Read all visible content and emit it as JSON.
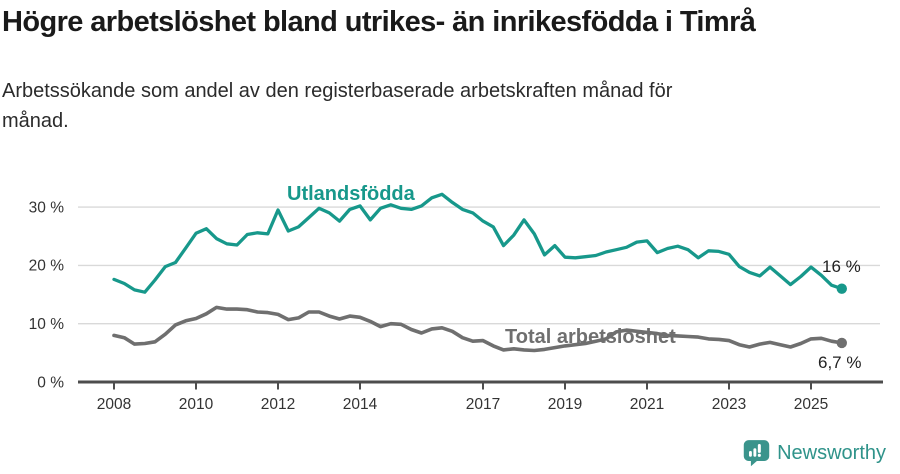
{
  "header": {
    "title": "Högre arbetslöshet bland utrikes- än inrikesfödda i Timrå",
    "subtitle_line1": "Arbetssökande som andel av den registerbaserade arbetskraften månad för",
    "subtitle_line2": "månad."
  },
  "footer": {
    "brand": "Newsworthy",
    "logo_icon": "newsworthy-speech-bubble-bar-chart-icon"
  },
  "colors": {
    "foreign_born_line": "#17988b",
    "total_line": "#6f6f6f",
    "grid": "#d9d9d9",
    "axis": "#4d4d4d",
    "axis_text": "#333333",
    "end_label_text": "#222222",
    "title_text": "#1a1a1a",
    "brand": "#2f938a"
  },
  "chart_data": {
    "type": "line",
    "title": "Högre arbetslöshet bland utrikes- än inrikesfödda i Timrå",
    "subtitle": "Arbetssökande som andel av den registerbaserade arbetskraften månad för månad.",
    "xlabel": "",
    "ylabel": "",
    "unit": "%",
    "grid": "horizontal",
    "legend": "inline-labels",
    "xlim": [
      2008,
      2026
    ],
    "ylim": [
      0,
      34
    ],
    "x_ticks": [
      {
        "value": 2008,
        "label": "2008"
      },
      {
        "value": 2010,
        "label": "2010"
      },
      {
        "value": 2012,
        "label": "2012"
      },
      {
        "value": 2014,
        "label": "2014"
      },
      {
        "value": 2017,
        "label": "2017"
      },
      {
        "value": 2019,
        "label": "2019"
      },
      {
        "value": 2021,
        "label": "2021"
      },
      {
        "value": 2023,
        "label": "2023"
      },
      {
        "value": 2025,
        "label": "2025"
      }
    ],
    "y_ticks": [
      {
        "value": 0,
        "label": "0 %"
      },
      {
        "value": 10,
        "label": "10 %"
      },
      {
        "value": 20,
        "label": "20 %"
      },
      {
        "value": 30,
        "label": "30 %"
      }
    ],
    "x": [
      2008,
      2008.25,
      2008.5,
      2008.75,
      2009,
      2009.25,
      2009.5,
      2009.75,
      2010,
      2010.25,
      2010.5,
      2010.75,
      2011,
      2011.25,
      2011.5,
      2011.75,
      2012,
      2012.25,
      2012.5,
      2012.75,
      2013,
      2013.25,
      2013.5,
      2013.75,
      2014,
      2014.25,
      2014.5,
      2014.75,
      2015,
      2015.25,
      2015.5,
      2015.75,
      2016,
      2016.25,
      2016.5,
      2016.75,
      2017,
      2017.25,
      2017.5,
      2017.75,
      2018,
      2018.25,
      2018.5,
      2018.75,
      2019,
      2019.25,
      2019.5,
      2019.75,
      2020,
      2020.25,
      2020.5,
      2020.75,
      2021,
      2021.25,
      2021.5,
      2021.75,
      2022,
      2022.25,
      2022.5,
      2022.75,
      2023,
      2023.25,
      2023.5,
      2023.75,
      2024,
      2024.25,
      2024.5,
      2024.75,
      2025,
      2025.25,
      2025.5,
      2025.75
    ],
    "series": [
      {
        "name": "Utlandsfödda",
        "color": "#17988b",
        "end_label": "16 %",
        "end_value": 16.0,
        "values": [
          17.6,
          16.9,
          15.8,
          15.4,
          17.5,
          19.8,
          20.5,
          23.0,
          25.5,
          26.3,
          24.6,
          23.7,
          23.5,
          25.3,
          25.6,
          25.4,
          29.5,
          25.9,
          26.6,
          28.2,
          29.8,
          29.0,
          27.6,
          29.6,
          30.2,
          27.8,
          29.8,
          30.4,
          29.8,
          29.6,
          30.2,
          31.6,
          32.2,
          30.8,
          29.6,
          29.0,
          27.6,
          26.6,
          23.4,
          25.2,
          27.8,
          25.4,
          21.8,
          23.4,
          21.4,
          21.3,
          21.5,
          21.7,
          22.3,
          22.7,
          23.1,
          24.0,
          24.2,
          22.2,
          22.9,
          23.3,
          22.7,
          21.3,
          22.5,
          22.4,
          21.9,
          19.8,
          18.8,
          18.2,
          19.7,
          18.2,
          16.7,
          18.1,
          19.7,
          18.3,
          16.6,
          16.0
        ]
      },
      {
        "name": "Total arbetslöshet",
        "color": "#6f6f6f",
        "end_label": "6,7 %",
        "end_value": 6.7,
        "values": [
          8.0,
          7.6,
          6.5,
          6.6,
          6.9,
          8.2,
          9.8,
          10.5,
          10.9,
          11.7,
          12.8,
          12.5,
          12.5,
          12.4,
          12.0,
          11.9,
          11.6,
          10.7,
          11.0,
          12.0,
          12.0,
          11.3,
          10.8,
          11.3,
          11.1,
          10.4,
          9.5,
          10.0,
          9.9,
          9.0,
          8.4,
          9.1,
          9.3,
          8.7,
          7.6,
          7.0,
          7.1,
          6.2,
          5.5,
          5.7,
          5.5,
          5.4,
          5.6,
          5.9,
          6.2,
          6.4,
          6.6,
          7.0,
          7.4,
          8.6,
          8.9,
          8.7,
          8.5,
          8.3,
          8.0,
          7.9,
          7.8,
          7.7,
          7.4,
          7.3,
          7.1,
          6.4,
          6.0,
          6.5,
          6.8,
          6.4,
          6.0,
          6.6,
          7.4,
          7.5,
          7.0,
          6.7
        ]
      }
    ]
  }
}
